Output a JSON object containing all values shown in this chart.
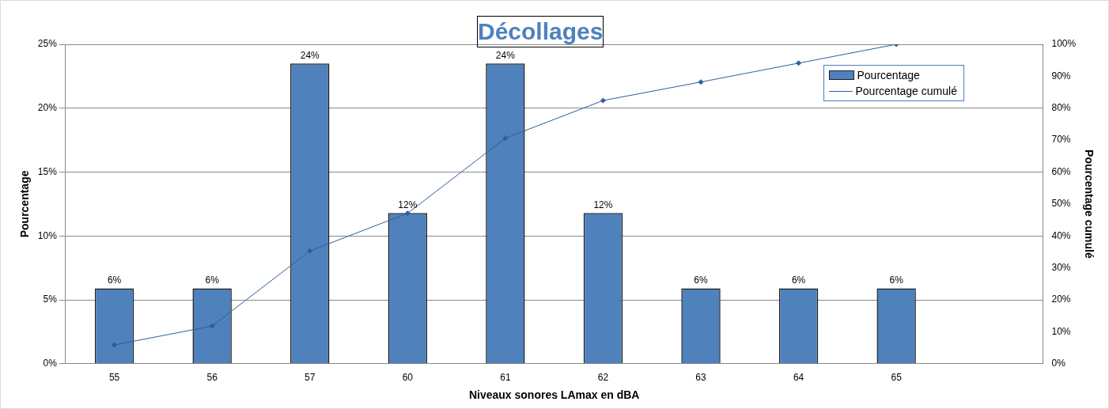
{
  "chart_data": {
    "type": "bar",
    "title": "Décollages",
    "xlabel": "Niveaux sonores LAmax en dBA",
    "ylabel": "Pourcentage",
    "y2label": "Pourcentage cumulé",
    "categories": [
      "55",
      "56",
      "57",
      "60",
      "61",
      "62",
      "63",
      "64",
      "65",
      null
    ],
    "series": [
      {
        "name": "Pourcentage",
        "color": "#4f81bd",
        "values": [
          5.9,
          5.9,
          23.5,
          11.8,
          23.5,
          11.8,
          5.9,
          5.9,
          5.9,
          null
        ],
        "value_labels": [
          "6%",
          "6%",
          "24%",
          "12%",
          "24%",
          "12%",
          "6%",
          "6%",
          "6%",
          null
        ]
      },
      {
        "name": "Pourcentage cumulé",
        "type": "line",
        "axis": "y2",
        "color": "#2f5e9c",
        "values": [
          5.9,
          11.8,
          35.3,
          47.1,
          70.6,
          82.4,
          88.2,
          94.1,
          100,
          null
        ]
      }
    ],
    "ylim": [
      0,
      25
    ],
    "yticks": [
      {
        "value": 0,
        "label": "0%"
      },
      {
        "value": 5,
        "label": "5%"
      },
      {
        "value": 10,
        "label": "10%"
      },
      {
        "value": 15,
        "label": "15%"
      },
      {
        "value": 20,
        "label": "20%"
      },
      {
        "value": 25,
        "label": "25%"
      }
    ],
    "y2lim": [
      0,
      100
    ],
    "y2ticks": [
      {
        "value": 0,
        "label": "0%"
      },
      {
        "value": 10,
        "label": "10%"
      },
      {
        "value": 20,
        "label": "20%"
      },
      {
        "value": 30,
        "label": "30%"
      },
      {
        "value": 40,
        "label": "40%"
      },
      {
        "value": 50,
        "label": "50%"
      },
      {
        "value": 60,
        "label": "60%"
      },
      {
        "value": 70,
        "label": "70%"
      },
      {
        "value": 80,
        "label": "80%"
      },
      {
        "value": 90,
        "label": "90%"
      },
      {
        "value": 100,
        "label": "100%"
      }
    ],
    "grid": "y",
    "legend": "top right",
    "marker": "diamond",
    "line_style": "solid"
  }
}
